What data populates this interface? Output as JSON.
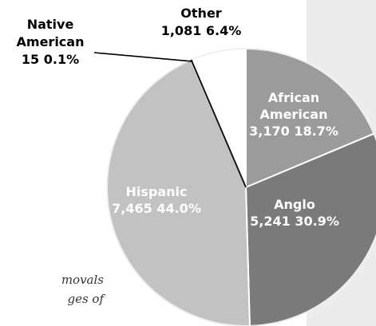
{
  "chart_data": {
    "type": "pie",
    "title": "",
    "slices": [
      {
        "name": "African American",
        "count": "3,170",
        "pct": "18.7%",
        "value": 18.7,
        "color": "#9b9b9b",
        "label_color": "#ffffff",
        "label_lines": [
          "African",
          "American",
          "3,170 18.7%"
        ]
      },
      {
        "name": "Anglo",
        "count": "5,241",
        "pct": "30.9%",
        "value": 30.9,
        "color": "#7a7a7a",
        "label_color": "#ffffff",
        "label_lines": [
          "Anglo",
          "5,241 30.9%"
        ]
      },
      {
        "name": "Hispanic",
        "count": "7,465",
        "pct": "44.0%",
        "value": 44.0,
        "color": "#c2c2c2",
        "label_color": "#ffffff",
        "label_lines": [
          "Hispanic",
          "7,465  44.0%"
        ]
      },
      {
        "name": "Native American",
        "count": "15",
        "pct": "0.1%",
        "value": 0.1,
        "color": "#222222",
        "label_color": "#000000",
        "label_lines": [
          "Native",
          "American",
          "15  0.1%"
        ]
      },
      {
        "name": "Other",
        "count": "1,081",
        "pct": "6.4%",
        "value": 6.4,
        "color": "#ffffff",
        "label_color": "#000000",
        "label_lines": [
          "Other",
          "1,081  6.4%"
        ]
      }
    ]
  },
  "caption_fragment": {
    "line1": "movals",
    "line2": "ges of"
  }
}
